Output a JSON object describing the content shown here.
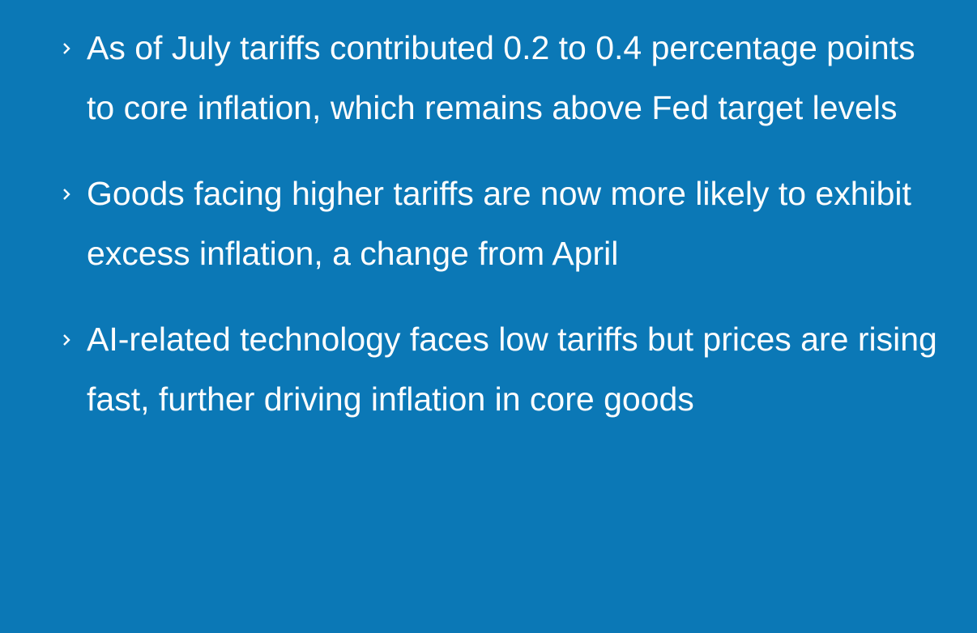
{
  "bullets": [
    "As of July tariffs contributed 0.2 to 0.4 percentage points to core inflation, which remains above Fed target levels",
    "Goods facing higher tariffs are now more likely to exhibit excess inflation, a change from April",
    "AI-related technology faces low tariffs but prices are rising fast, further driving inflation in core goods"
  ]
}
